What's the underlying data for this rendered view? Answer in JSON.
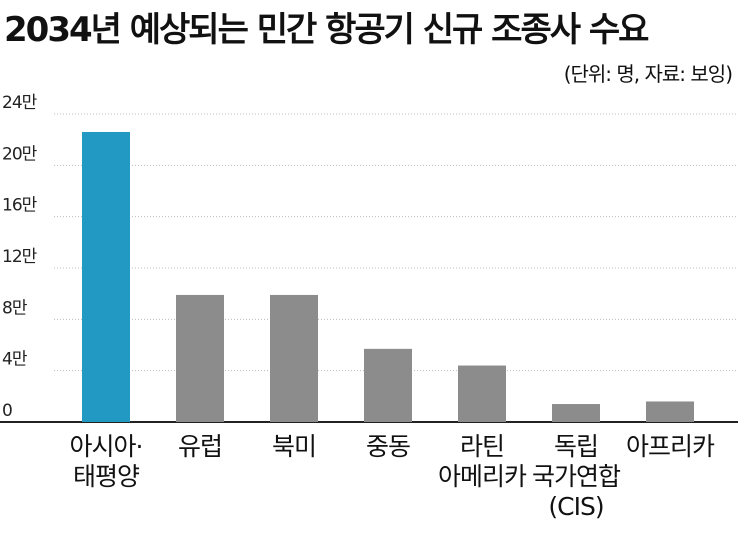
{
  "chart_data": {
    "type": "bar",
    "title": "2034년 예상되는 민간 항공기 신규 조종사 수요",
    "subtitle": "(단위: 명, 자료: 보잉)",
    "categories": [
      [
        "아시아·",
        "태평양"
      ],
      [
        "유럽"
      ],
      [
        "북미"
      ],
      [
        "중동"
      ],
      [
        "라틴",
        "아메리카"
      ],
      [
        "독립",
        "국가연합",
        "(CIS)"
      ],
      [
        "아프리카"
      ]
    ],
    "values": [
      226000,
      99000,
      99000,
      57000,
      44000,
      14000,
      16000
    ],
    "yticks": [
      "0",
      "4만",
      "8만",
      "12만",
      "16만",
      "20만",
      "24만"
    ],
    "ylim": [
      0,
      240000
    ],
    "highlight_index": 0,
    "grid": true,
    "colors": {
      "highlight": "#2199c2",
      "default": "#8c8c8c",
      "grid": "#bbbbbb",
      "axis": "#222222"
    }
  }
}
